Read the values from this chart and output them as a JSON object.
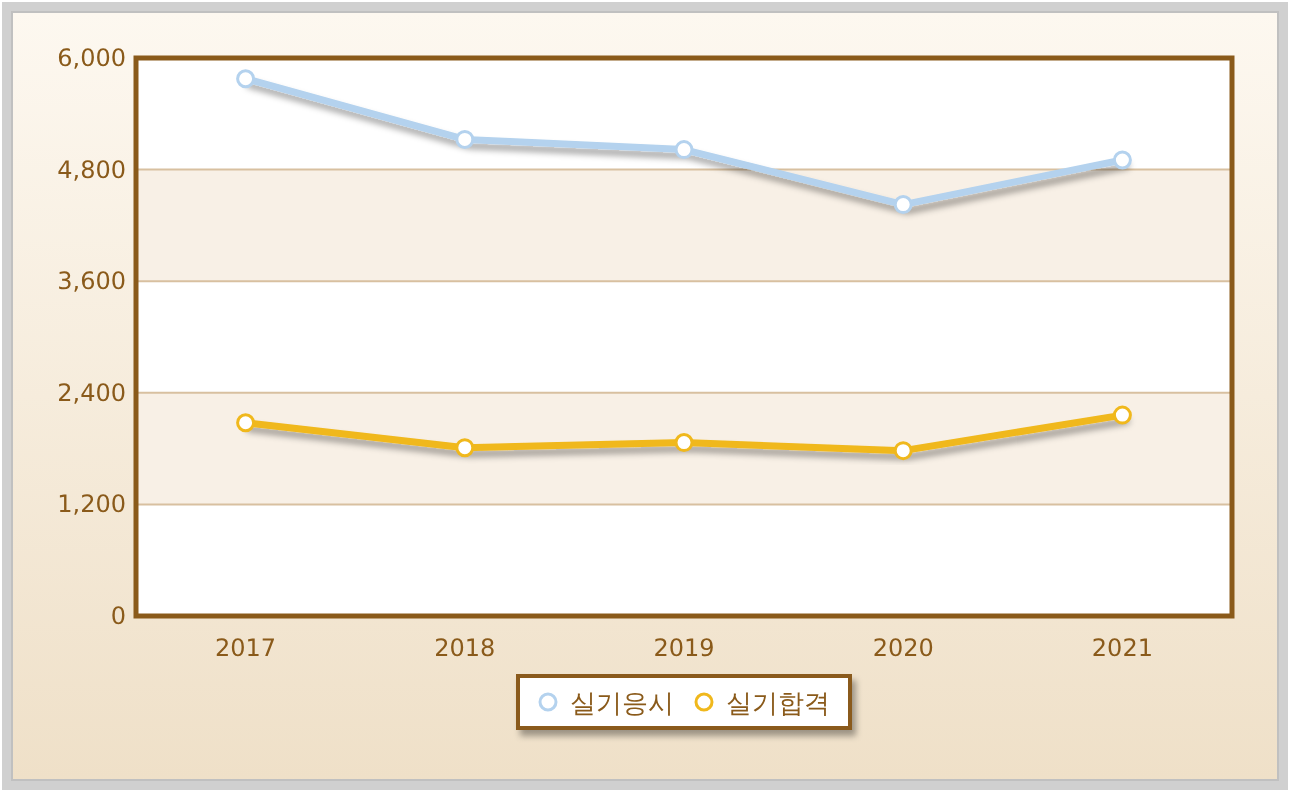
{
  "chart_data": {
    "type": "line",
    "categories": [
      "2017",
      "2018",
      "2019",
      "2020",
      "2021"
    ],
    "series": [
      {
        "name": "실기응시",
        "color": "#b4d2ee",
        "values": [
          5777,
          5124,
          5015,
          4424,
          4903
        ]
      },
      {
        "name": "실기합격",
        "color": "#f0b81c",
        "values": [
          2078,
          1810,
          1865,
          1778,
          2160
        ]
      }
    ],
    "ylim": [
      0,
      6000
    ],
    "yticks": [
      {
        "value": 0,
        "label": "0"
      },
      {
        "value": 1200,
        "label": "1,200"
      },
      {
        "value": 2400,
        "label": "2,400"
      },
      {
        "value": 3600,
        "label": "3,600"
      },
      {
        "value": 4800,
        "label": "4,800"
      },
      {
        "value": 6000,
        "label": "6,000"
      }
    ],
    "grid": "y",
    "legend": "bottom",
    "marker": "circle",
    "line_style": "solid"
  }
}
